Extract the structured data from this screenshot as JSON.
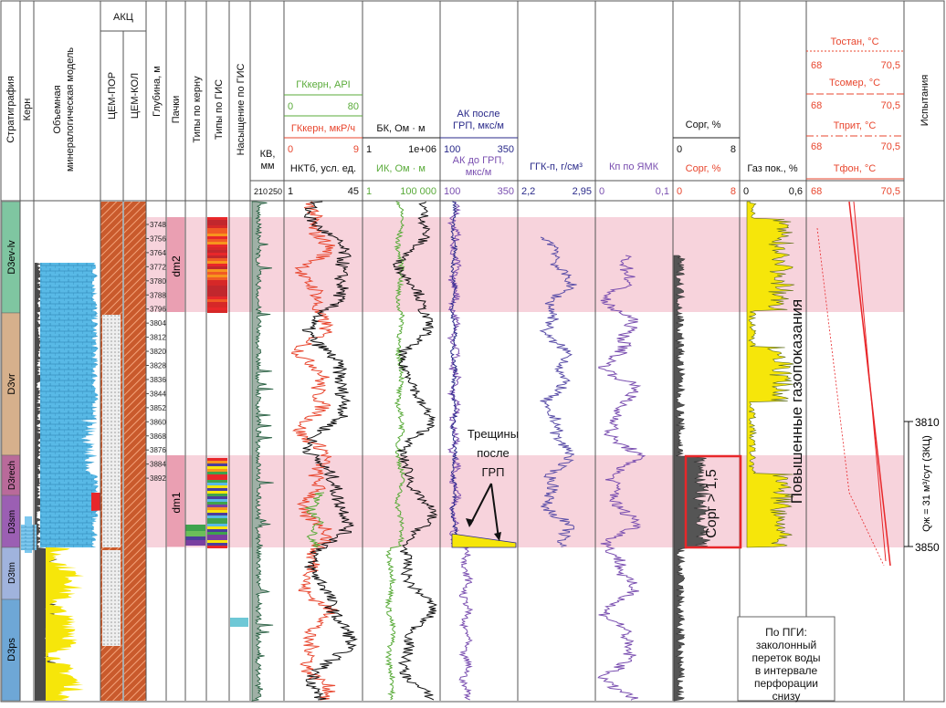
{
  "header": {
    "col_titles": [
      "Стратиграфия",
      "Керн",
      "Объемная минералогическая модель",
      "Глубина, м",
      "Пачки",
      "Типы по керну",
      "Типы по ГИС",
      "Насыщение по ГИС",
      "Испытания"
    ],
    "akc_title": "АКЦ",
    "akc_sub": [
      "ЦЕМ-ПОР",
      "ЦЕМ-КОЛ"
    ],
    "kv": {
      "label": "КВ, мм",
      "scale_min": "210",
      "scale_max": "250"
    },
    "gk_core": {
      "label": "ГКкерн, API",
      "min": "0",
      "max": "80"
    },
    "gk": {
      "label": "ГКкерн, мкР/ч",
      "min": "0",
      "max": "9"
    },
    "nkt": {
      "label": "НКТб, усл. ед.",
      "min": "1",
      "max": "45"
    },
    "bk": {
      "label": "БК, Ом · м",
      "min": "1",
      "max": "1e+06"
    },
    "ik": {
      "label": "ИК, Ом · м",
      "min": "1",
      "max": "100 000"
    },
    "ak_after": {
      "label": "АК после ГРП, мкс/м",
      "min": "100",
      "max": "350"
    },
    "ak_before": {
      "label": "АК до ГРП, мкс/м",
      "min": "100",
      "max": "350"
    },
    "ggk": {
      "label": "ГГК-п, г/см³",
      "min": "2,2",
      "max": "2,95"
    },
    "kp": {
      "label": "Кп по ЯМК",
      "min": "0",
      "max": "0,1"
    },
    "corg1": {
      "label": "Сорг, %",
      "min": "0",
      "max": "8"
    },
    "corg2": {
      "label": "Сорг, %",
      "min": "0",
      "max": "8"
    },
    "gas": {
      "label": "Газ пок., %",
      "min": "0",
      "max": "0,6"
    },
    "temps": [
      {
        "label": "Тостан, °C",
        "min": "68",
        "max": "70,5"
      },
      {
        "label": "Тсомер, °C",
        "min": "68",
        "max": "70,5"
      },
      {
        "label": "Тприт, °C",
        "min": "68",
        "max": "70,5"
      },
      {
        "label": "Тфон, °C",
        "min": "68",
        "max": "70,5"
      }
    ]
  },
  "strat_units": [
    "D3ev-lv",
    "D3vr",
    "D3rech",
    "D3sm",
    "D3tm",
    "D3ps"
  ],
  "packs": [
    "dm2",
    "dm1"
  ],
  "depth_ticks": [
    "3748",
    "3756",
    "3764",
    "3772",
    "3780",
    "3788",
    "3796",
    "3804",
    "3812",
    "3820",
    "3828",
    "3836",
    "3844",
    "3852",
    "3860",
    "3868",
    "3876",
    "3884",
    "3892"
  ],
  "annotations": {
    "fractures": "Трещины после ГРП",
    "gas_note": "Повышенные газопоказания",
    "corg_box": "Сорг > 1,5",
    "pgi_note": "По ПГИ: заколонный переток воды в интервале перфорации снизу"
  },
  "tests": {
    "top_depth": "3810",
    "bottom_depth": "3850",
    "rate": "Qж = 31 м³/сут (ЗКЦ)"
  },
  "colors": {
    "pink_band": "#f7d3dc",
    "gk_red": "#e8462e",
    "gk_green": "#5aab3a",
    "ak_purple": "#7a4fb0",
    "ggk_blue": "#5b4fa8",
    "gas_yellow": "#f6e60a",
    "dolomite_blue": "#58b9e6",
    "hatch": "#e56a2e"
  }
}
